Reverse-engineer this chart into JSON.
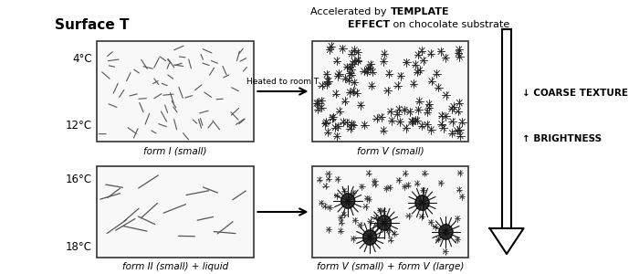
{
  "title_text": "Surface T",
  "arrow_label": "Heated to room T",
  "temp_top_upper": "4°C",
  "temp_top_lower": "12°C",
  "temp_bot_upper": "16°C",
  "temp_bot_lower": "18°C",
  "label_top_left": "form I (small)",
  "label_top_right": "form V (small)",
  "label_bot_left": "form II (small) + liquid",
  "label_bot_right": "form V (small) + form V (large)",
  "right_label_top": "↓ COARSE TEXTURE",
  "right_label_bot": "↑ BRIGHTNESS",
  "fig_bg": "#ffffff"
}
